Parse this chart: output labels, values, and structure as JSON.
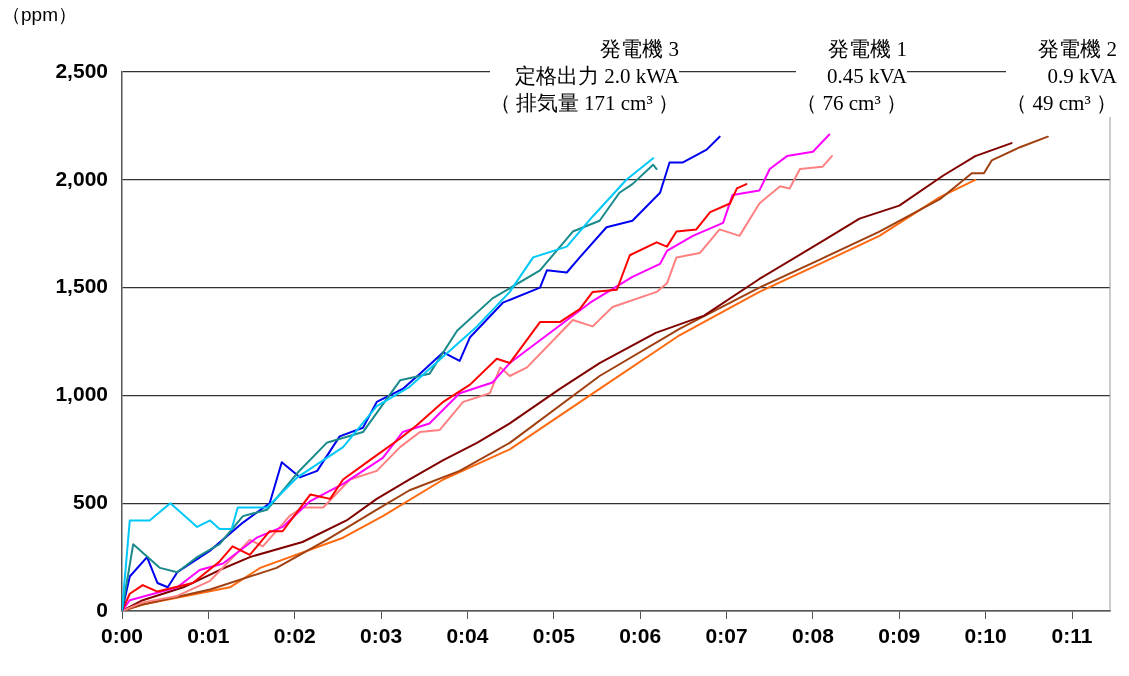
{
  "chart_data": {
    "type": "line",
    "ylabel": "（ppm）",
    "annotations": [
      "発電機 3\n定格出力 2.0 kWA\n（ 排気量  171 cm³ ）",
      "発電機 1\n0.45 kVA\n（ 76 cm³ ）",
      "発電機 2\n0.9 kVA\n（ 49 cm³ ）"
    ],
    "xlim": [
      0,
      11.44
    ],
    "ylim": [
      0,
      2500
    ],
    "xticks": [
      {
        "value": 0,
        "label": "0:00"
      },
      {
        "value": 1,
        "label": "0:01"
      },
      {
        "value": 2,
        "label": "0:02"
      },
      {
        "value": 3,
        "label": "0:03"
      },
      {
        "value": 4,
        "label": "0:04"
      },
      {
        "value": 5,
        "label": "0:05"
      },
      {
        "value": 6,
        "label": "0:06"
      },
      {
        "value": 7,
        "label": "0:07"
      },
      {
        "value": 8,
        "label": "0:08"
      },
      {
        "value": 9,
        "label": "0:09"
      },
      {
        "value": 10,
        "label": "0:10"
      },
      {
        "value": 11,
        "label": "0:11"
      }
    ],
    "yticks": [
      0,
      {
        "value": 500,
        "label": "500"
      },
      {
        "value": 1000,
        "label": "1,000"
      },
      {
        "value": 1500,
        "label": "1,500"
      },
      {
        "value": 2000,
        "label": "2,000"
      },
      {
        "value": 2500,
        "label": "2,500"
      }
    ],
    "grid": "y",
    "legend": false,
    "marker": "none",
    "line_style": "solid",
    "series": [
      {
        "color": "#00c8f8",
        "x": [
          0,
          0.09,
          0.32,
          0.56,
          0.87,
          1.02,
          1.13,
          1.27,
          1.34,
          1.68,
          2.03,
          2.56,
          2.95,
          3.33,
          3.72,
          4.11,
          4.49,
          4.76,
          5.15,
          5.45,
          5.84,
          6.15
        ],
        "values": [
          0,
          420,
          420,
          500,
          390,
          420,
          380,
          380,
          480,
          480,
          620,
          760,
          950,
          1040,
          1180,
          1320,
          1480,
          1640,
          1690,
          1830,
          2000,
          2100
        ]
      },
      {
        "color": "#1a8a8a",
        "x": [
          0,
          0.13,
          0.44,
          0.64,
          0.87,
          1.13,
          1.4,
          1.68,
          2.03,
          2.37,
          2.79,
          3.22,
          3.56,
          3.88,
          4.29,
          4.84,
          5.22,
          5.53,
          5.76,
          5.91,
          6.15,
          6.19
        ],
        "values": [
          0,
          310,
          200,
          180,
          250,
          310,
          440,
          470,
          640,
          780,
          830,
          1070,
          1100,
          1300,
          1450,
          1580,
          1760,
          1810,
          1940,
          1980,
          2070,
          2050
        ]
      },
      {
        "color": "#0000f0",
        "x": [
          0,
          0.09,
          0.29,
          0.41,
          0.53,
          0.64,
          1.02,
          1.4,
          1.71,
          1.85,
          2.06,
          2.26,
          2.52,
          2.79,
          2.95,
          3.25,
          3.45,
          3.72,
          3.91,
          4.03,
          4.41,
          4.84,
          4.92,
          5.15,
          5.3,
          5.61,
          5.91,
          6.23,
          6.34,
          6.49,
          6.77,
          6.92
        ],
        "values": [
          0,
          160,
          250,
          130,
          110,
          180,
          280,
          410,
          500,
          690,
          620,
          650,
          810,
          850,
          970,
          1030,
          1100,
          1200,
          1160,
          1270,
          1430,
          1500,
          1580,
          1570,
          1640,
          1780,
          1810,
          1940,
          2080,
          2080,
          2140,
          2200
        ]
      },
      {
        "color": "#ff0000",
        "x": [
          0,
          0.09,
          0.24,
          0.41,
          0.82,
          1.13,
          1.28,
          1.48,
          1.71,
          1.86,
          2.18,
          2.41,
          2.56,
          2.87,
          3.22,
          3.41,
          3.72,
          4.03,
          4.34,
          4.49,
          4.84,
          5.07,
          5.3,
          5.45,
          5.73,
          5.88,
          6.19,
          6.31,
          6.42,
          6.65,
          6.81,
          7.04,
          7.12,
          7.23
        ],
        "values": [
          0,
          80,
          120,
          90,
          130,
          230,
          300,
          260,
          370,
          370,
          540,
          520,
          610,
          700,
          800,
          860,
          970,
          1050,
          1170,
          1150,
          1340,
          1340,
          1400,
          1480,
          1490,
          1650,
          1710,
          1690,
          1760,
          1770,
          1850,
          1890,
          1960,
          1980
        ]
      },
      {
        "color": "#ff00ff",
        "x": [
          0,
          0.09,
          0.64,
          0.9,
          1.17,
          1.56,
          1.86,
          2.18,
          2.56,
          3.02,
          3.25,
          3.56,
          3.91,
          4.29,
          4.49,
          5.42,
          5.91,
          6.23,
          6.31,
          6.61,
          6.96,
          7.07,
          7.38,
          7.5,
          7.7,
          8.0,
          8.19
        ],
        "values": [
          0,
          50,
          110,
          190,
          220,
          340,
          390,
          510,
          590,
          710,
          830,
          870,
          1010,
          1060,
          1150,
          1430,
          1550,
          1610,
          1670,
          1740,
          1800,
          1930,
          1950,
          2050,
          2110,
          2130,
          2210
        ]
      },
      {
        "color": "#ff8080",
        "x": [
          0,
          0.24,
          0.64,
          1.02,
          1.48,
          1.63,
          1.94,
          2.09,
          2.33,
          2.64,
          2.95,
          3.22,
          3.45,
          3.68,
          3.95,
          4.26,
          4.38,
          4.49,
          4.69,
          5.22,
          5.45,
          5.68,
          6.19,
          6.31,
          6.42,
          6.69,
          6.92,
          7.15,
          7.38,
          7.62,
          7.73,
          7.85,
          8.11,
          8.22
        ],
        "values": [
          0,
          40,
          70,
          140,
          330,
          300,
          440,
          480,
          480,
          610,
          650,
          760,
          830,
          840,
          970,
          1010,
          1130,
          1090,
          1130,
          1350,
          1320,
          1410,
          1480,
          1520,
          1640,
          1660,
          1770,
          1740,
          1890,
          1970,
          1960,
          2050,
          2060,
          2110
        ]
      },
      {
        "color": "#800000",
        "x": [
          0,
          0.24,
          0.71,
          1.13,
          1.48,
          2.09,
          2.6,
          2.95,
          3.33,
          3.72,
          4.11,
          4.49,
          5.07,
          5.53,
          6.18,
          6.74,
          7.38,
          8.13,
          8.54,
          9.0,
          9.51,
          9.88,
          10.3
        ],
        "values": [
          0,
          50,
          110,
          190,
          250,
          320,
          420,
          520,
          610,
          700,
          780,
          870,
          1030,
          1150,
          1290,
          1370,
          1540,
          1720,
          1820,
          1880,
          2020,
          2110,
          2170
        ]
      },
      {
        "color": "#a04010",
        "x": [
          0,
          0.24,
          1.02,
          1.79,
          2.37,
          2.95,
          3.33,
          3.91,
          4.49,
          5.53,
          6.46,
          7.38,
          8.08,
          8.77,
          9.47,
          9.84,
          9.98,
          10.07,
          10.39,
          10.72
        ],
        "values": [
          0,
          30,
          100,
          200,
          330,
          470,
          560,
          650,
          780,
          1090,
          1310,
          1500,
          1630,
          1760,
          1910,
          2030,
          2030,
          2090,
          2150,
          2200
        ]
      },
      {
        "color": "#ff6a10",
        "x": [
          0,
          0.24,
          1.25,
          1.6,
          2.56,
          3.02,
          3.72,
          4.49,
          5.53,
          6.46,
          7.38,
          8.08,
          8.77,
          9.47,
          9.88
        ],
        "values": [
          0,
          30,
          110,
          200,
          340,
          440,
          610,
          750,
          1030,
          1280,
          1480,
          1610,
          1740,
          1920,
          2000
        ]
      }
    ]
  }
}
